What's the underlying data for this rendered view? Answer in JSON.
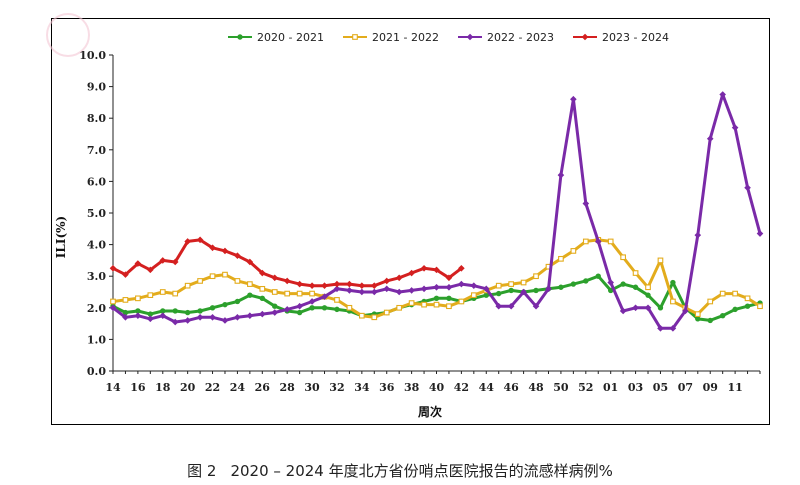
{
  "caption": {
    "figure_no": "图 2",
    "text": "2020 – 2024 年度北方省份哨点医院报告的流感样病例%"
  },
  "chart_data": {
    "type": "line",
    "title": "",
    "xlabel": "周次",
    "ylabel": "ILI(%)",
    "ylim": [
      0,
      10
    ],
    "yticks": [
      "0.0",
      "1.0",
      "2.0",
      "3.0",
      "4.0",
      "5.0",
      "6.0",
      "7.0",
      "8.0",
      "9.0",
      "10.0"
    ],
    "xtick_labels": [
      "14",
      "16",
      "18",
      "20",
      "22",
      "24",
      "26",
      "28",
      "30",
      "32",
      "34",
      "36",
      "38",
      "40",
      "42",
      "44",
      "46",
      "48",
      "50",
      "52",
      "01",
      "03",
      "05",
      "07",
      "09",
      "11"
    ],
    "weeks": [
      "14",
      "15",
      "16",
      "17",
      "18",
      "19",
      "20",
      "21",
      "22",
      "23",
      "24",
      "25",
      "26",
      "27",
      "28",
      "29",
      "30",
      "31",
      "32",
      "33",
      "34",
      "35",
      "36",
      "37",
      "38",
      "39",
      "40",
      "41",
      "42",
      "43",
      "44",
      "45",
      "46",
      "47",
      "48",
      "49",
      "50",
      "51",
      "52",
      "53",
      "01",
      "02",
      "03",
      "04",
      "05",
      "06",
      "07",
      "08",
      "09",
      "10",
      "11",
      "12",
      "13"
    ],
    "grid": false,
    "legend_position": "top",
    "series": [
      {
        "name": "2020 - 2021",
        "color": "#2ca02c",
        "marker": "circle",
        "values": [
          2.05,
          1.85,
          1.9,
          1.8,
          1.9,
          1.9,
          1.85,
          1.9,
          2.0,
          2.1,
          2.2,
          2.4,
          2.3,
          2.05,
          1.9,
          1.85,
          2.0,
          2.0,
          1.95,
          1.9,
          1.75,
          1.8,
          1.85,
          2.0,
          2.1,
          2.2,
          2.3,
          2.3,
          2.2,
          2.3,
          2.4,
          2.45,
          2.55,
          2.5,
          2.55,
          2.6,
          2.65,
          2.75,
          2.85,
          3.0,
          2.55,
          2.75,
          2.65,
          2.4,
          2.0,
          2.8,
          2.0,
          1.65,
          1.6,
          1.75,
          1.95,
          2.05,
          2.15
        ]
      },
      {
        "name": "2021 - 2022",
        "color": "#e3ac1c",
        "marker": "square",
        "values": [
          2.2,
          2.25,
          2.3,
          2.4,
          2.5,
          2.45,
          2.7,
          2.85,
          3.0,
          3.05,
          2.85,
          2.75,
          2.6,
          2.5,
          2.45,
          2.45,
          2.45,
          2.35,
          2.25,
          2.0,
          1.75,
          1.7,
          1.85,
          2.0,
          2.15,
          2.1,
          2.1,
          2.05,
          2.2,
          2.4,
          2.55,
          2.7,
          2.75,
          2.8,
          3.0,
          3.3,
          3.55,
          3.8,
          4.1,
          4.15,
          4.1,
          3.6,
          3.1,
          2.65,
          3.5,
          2.2,
          2.0,
          1.8,
          2.2,
          2.45,
          2.45,
          2.3,
          2.05
        ]
      },
      {
        "name": "2022 - 2023",
        "color": "#7a2aa8",
        "marker": "diamond",
        "values": [
          2.0,
          1.7,
          1.75,
          1.65,
          1.75,
          1.55,
          1.6,
          1.7,
          1.7,
          1.6,
          1.7,
          1.75,
          1.8,
          1.85,
          1.95,
          2.05,
          2.2,
          2.35,
          2.6,
          2.55,
          2.5,
          2.5,
          2.6,
          2.5,
          2.55,
          2.6,
          2.65,
          2.65,
          2.75,
          2.7,
          2.6,
          2.05,
          2.05,
          2.5,
          2.05,
          2.6,
          6.2,
          8.6,
          5.3,
          4.1,
          2.8,
          1.9,
          2.0,
          2.0,
          1.35,
          1.35,
          1.9,
          4.3,
          7.35,
          8.75,
          7.7,
          5.8,
          4.35
        ]
      },
      {
        "name": "2023 - 2024",
        "color": "#d42020",
        "marker": "diamond",
        "values": [
          3.25,
          3.05,
          3.4,
          3.2,
          3.5,
          3.45,
          4.1,
          4.15,
          3.9,
          3.8,
          3.65,
          3.45,
          3.1,
          2.95,
          2.85,
          2.75,
          2.7,
          2.7,
          2.75,
          2.75,
          2.7,
          2.7,
          2.85,
          2.95,
          3.1,
          3.25,
          3.2,
          2.95,
          3.25
        ]
      }
    ]
  }
}
